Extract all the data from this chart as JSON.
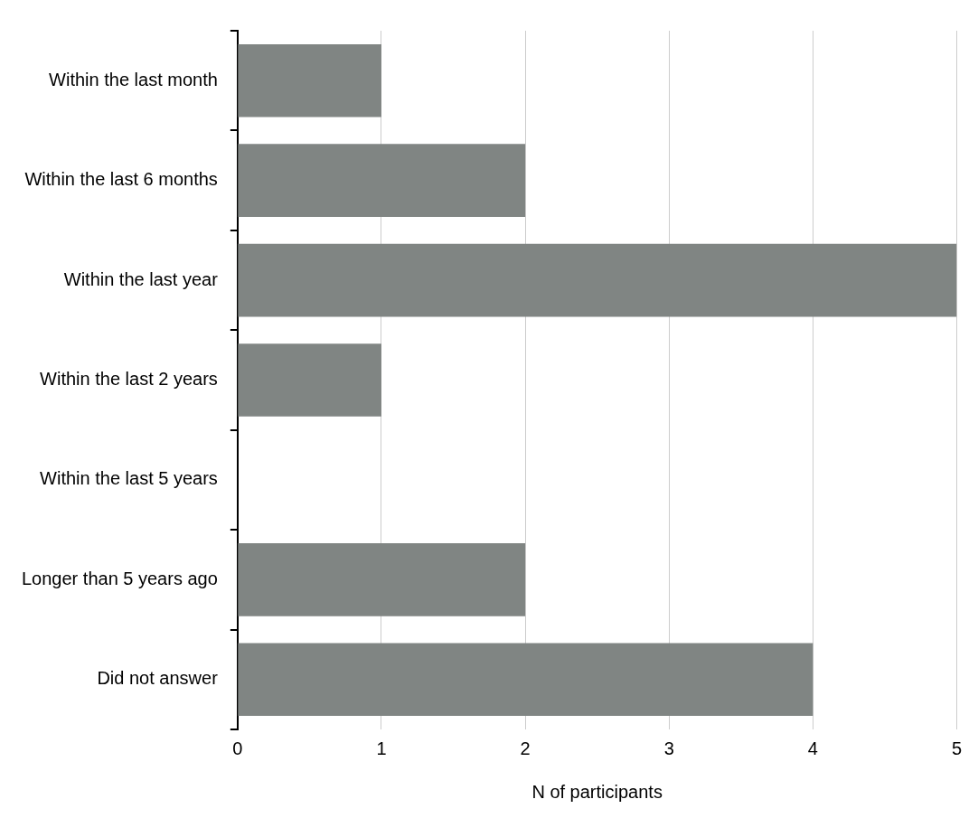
{
  "chart_data": {
    "type": "bar",
    "orientation": "horizontal",
    "xlabel": "N of participants",
    "categories": [
      "Within the last month",
      "Within the last 6 months",
      "Within the last year",
      "Within the last 2 years",
      "Within the last 5 years",
      "Longer than 5 years ago",
      "Did not answer"
    ],
    "values": [
      1,
      2,
      5,
      1,
      0,
      2,
      4
    ],
    "color": "#808583",
    "xlim": [
      0,
      5
    ],
    "xticks": [
      0,
      1,
      2,
      3,
      4,
      5
    ],
    "grid": "x",
    "legend": false
  }
}
